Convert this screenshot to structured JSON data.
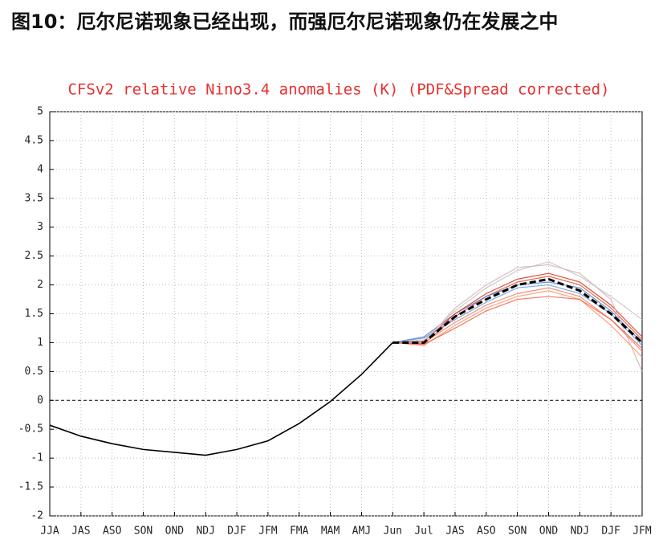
{
  "heading": "图10：厄尔尼诺现象已经出现，而强厄尔尼诺现象仍在发展之中",
  "chart_data": {
    "type": "line",
    "title": "CFSv2 relative Nino3.4 anomalies (K) (PDF&Spread corrected)",
    "categories": [
      "JJA",
      "JAS",
      "ASO",
      "SON",
      "OND",
      "NDJ",
      "DJF",
      "JFM",
      "FMA",
      "MAM",
      "AMJ",
      "Jun",
      "Jul",
      "JAS",
      "ASO",
      "SON",
      "OND",
      "NDJ",
      "DJF",
      "JFM"
    ],
    "ylim": [
      -2,
      5
    ],
    "yticks": [
      -2,
      -1.5,
      -1,
      -0.5,
      0,
      0.5,
      1,
      1.5,
      2,
      2.5,
      3,
      3.5,
      4,
      4.5,
      5
    ],
    "grid": true,
    "series": [
      {
        "color": "#e8502a",
        "values": [
          null,
          null,
          null,
          null,
          null,
          null,
          null,
          null,
          null,
          null,
          null,
          1.0,
          0.98,
          1.45,
          1.8,
          2.05,
          2.15,
          2.0,
          1.6,
          1.05
        ]
      },
      {
        "color": "#f08060",
        "values": [
          null,
          null,
          null,
          null,
          null,
          null,
          null,
          null,
          null,
          null,
          null,
          1.0,
          1.0,
          1.35,
          1.65,
          1.85,
          1.95,
          1.8,
          1.4,
          0.85
        ]
      },
      {
        "color": "#4a7fd0",
        "values": [
          null,
          null,
          null,
          null,
          null,
          null,
          null,
          null,
          null,
          null,
          null,
          1.0,
          1.1,
          1.5,
          1.8,
          2.0,
          2.05,
          1.95,
          1.55,
          1.0
        ]
      },
      {
        "color": "#c8c0c0",
        "values": [
          null,
          null,
          null,
          null,
          null,
          null,
          null,
          null,
          null,
          null,
          null,
          1.0,
          1.05,
          1.55,
          1.95,
          2.25,
          2.4,
          2.15,
          1.8,
          1.4
        ]
      },
      {
        "color": "#ff9070",
        "values": [
          null,
          null,
          null,
          null,
          null,
          null,
          null,
          null,
          null,
          null,
          null,
          1.0,
          0.95,
          1.3,
          1.6,
          1.8,
          1.9,
          1.75,
          1.3,
          0.75
        ]
      },
      {
        "color": "#d83020",
        "values": [
          null,
          null,
          null,
          null,
          null,
          null,
          null,
          null,
          null,
          null,
          null,
          1.0,
          1.02,
          1.5,
          1.85,
          2.1,
          2.2,
          2.05,
          1.65,
          1.1
        ]
      },
      {
        "color": "#6a9ae0",
        "values": [
          null,
          null,
          null,
          null,
          null,
          null,
          null,
          null,
          null,
          null,
          null,
          1.0,
          1.08,
          1.4,
          1.7,
          1.95,
          2.0,
          1.85,
          1.5,
          0.95
        ]
      },
      {
        "color": "#d0b0b0",
        "values": [
          null,
          null,
          null,
          null,
          null,
          null,
          null,
          null,
          null,
          null,
          null,
          1.0,
          1.0,
          1.6,
          2.0,
          2.3,
          2.35,
          2.2,
          1.75,
          0.5
        ]
      },
      {
        "color": "#f06040",
        "values": [
          null,
          null,
          null,
          null,
          null,
          null,
          null,
          null,
          null,
          null,
          null,
          1.0,
          0.97,
          1.25,
          1.55,
          1.75,
          1.8,
          1.75,
          1.4,
          0.9
        ]
      },
      {
        "color": "#000000",
        "values": [
          -0.43,
          -0.62,
          -0.75,
          -0.85,
          -0.9,
          -0.95,
          -0.85,
          -0.7,
          -0.4,
          -0.02,
          0.45,
          1.0,
          null,
          null,
          null,
          null,
          null,
          null,
          null,
          null
        ]
      },
      {
        "color": "#000000",
        "dashed": true,
        "values": [
          null,
          null,
          null,
          null,
          null,
          null,
          null,
          null,
          null,
          null,
          null,
          1.0,
          1.0,
          1.45,
          1.75,
          2.0,
          2.1,
          1.9,
          1.5,
          1.0
        ]
      }
    ]
  }
}
